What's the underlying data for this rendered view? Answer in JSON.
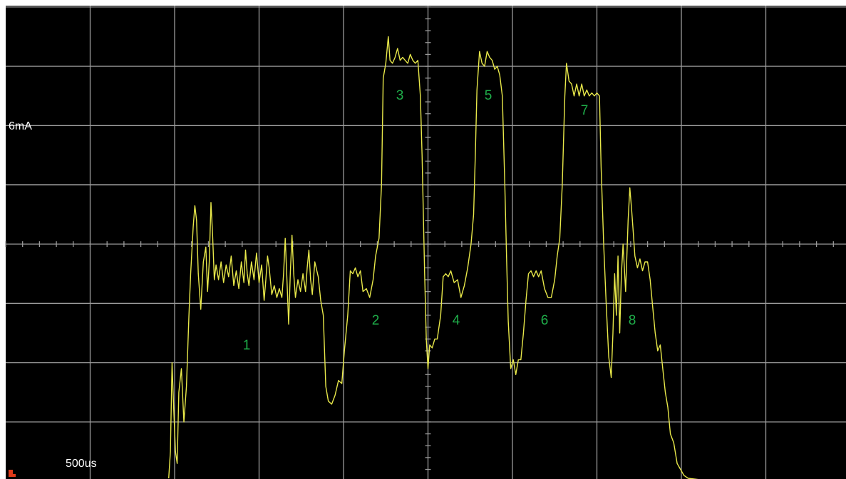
{
  "scope": {
    "vertical_scale_label": "6mA",
    "time_scale_label": "500us",
    "colors": {
      "background": "#000000",
      "grid": "#9a9a9a",
      "trace": "#e8e84a",
      "labels": "#1fae4a",
      "text": "#ffffff",
      "trigger_marker": "#e03a1a"
    }
  },
  "chart_data": {
    "type": "line",
    "grid": true,
    "xlim": [
      0,
      10
    ],
    "ylim": [
      -4,
      4
    ],
    "x_unit": "div",
    "y_unit": "div",
    "series": [
      {
        "points": [
          [
            1.93,
            -3.95
          ],
          [
            1.95,
            -3.5
          ],
          [
            1.97,
            -2.0
          ],
          [
            1.99,
            -2.8
          ],
          [
            2.01,
            -3.5
          ],
          [
            2.03,
            -3.7
          ],
          [
            2.05,
            -2.5
          ],
          [
            2.08,
            -2.1
          ],
          [
            2.11,
            -3.0
          ],
          [
            2.14,
            -2.4
          ],
          [
            2.17,
            -1.2
          ],
          [
            2.19,
            -0.5
          ],
          [
            2.22,
            0.3
          ],
          [
            2.24,
            0.65
          ],
          [
            2.26,
            0.4
          ],
          [
            2.28,
            -0.5
          ],
          [
            2.31,
            -1.1
          ],
          [
            2.34,
            -0.3
          ],
          [
            2.37,
            -0.05
          ],
          [
            2.39,
            -0.8
          ],
          [
            2.41,
            -0.3
          ],
          [
            2.43,
            0.7
          ],
          [
            2.45,
            0.15
          ],
          [
            2.47,
            -0.6
          ],
          [
            2.49,
            -0.35
          ],
          [
            2.52,
            -0.6
          ],
          [
            2.55,
            -0.3
          ],
          [
            2.58,
            -0.65
          ],
          [
            2.61,
            -0.35
          ],
          [
            2.64,
            -0.55
          ],
          [
            2.67,
            -0.2
          ],
          [
            2.7,
            -0.7
          ],
          [
            2.73,
            -0.45
          ],
          [
            2.76,
            -0.75
          ],
          [
            2.79,
            -0.3
          ],
          [
            2.82,
            -0.65
          ],
          [
            2.84,
            -0.1
          ],
          [
            2.86,
            -0.5
          ],
          [
            2.88,
            -0.7
          ],
          [
            2.91,
            -0.3
          ],
          [
            2.94,
            -0.6
          ],
          [
            2.97,
            -0.15
          ],
          [
            3.0,
            -0.65
          ],
          [
            3.03,
            -0.35
          ],
          [
            3.06,
            -0.95
          ],
          [
            3.08,
            -0.6
          ],
          [
            3.1,
            -0.2
          ],
          [
            3.12,
            -0.4
          ],
          [
            3.15,
            -0.85
          ],
          [
            3.18,
            -0.7
          ],
          [
            3.21,
            -0.9
          ],
          [
            3.24,
            -0.75
          ],
          [
            3.27,
            -0.9
          ],
          [
            3.29,
            -0.5
          ],
          [
            3.31,
            0.1
          ],
          [
            3.33,
            -0.6
          ],
          [
            3.35,
            -1.35
          ],
          [
            3.37,
            -0.5
          ],
          [
            3.39,
            0.15
          ],
          [
            3.41,
            -0.5
          ],
          [
            3.43,
            -0.9
          ],
          [
            3.46,
            -0.6
          ],
          [
            3.49,
            -0.8
          ],
          [
            3.52,
            -0.5
          ],
          [
            3.55,
            -0.8
          ],
          [
            3.57,
            -0.4
          ],
          [
            3.59,
            -0.1
          ],
          [
            3.61,
            -0.6
          ],
          [
            3.63,
            -0.85
          ],
          [
            3.66,
            -0.3
          ],
          [
            3.7,
            -0.55
          ],
          [
            3.73,
            -0.95
          ],
          [
            3.76,
            -1.2
          ],
          [
            3.79,
            -2.4
          ],
          [
            3.82,
            -2.65
          ],
          [
            3.86,
            -2.7
          ],
          [
            3.9,
            -2.55
          ],
          [
            3.94,
            -2.3
          ],
          [
            3.98,
            -2.35
          ],
          [
            4.01,
            -1.8
          ],
          [
            4.05,
            -1.2
          ],
          [
            4.08,
            -0.45
          ],
          [
            4.11,
            -0.5
          ],
          [
            4.14,
            -0.4
          ],
          [
            4.17,
            -0.55
          ],
          [
            4.2,
            -0.45
          ],
          [
            4.23,
            -0.8
          ],
          [
            4.27,
            -0.75
          ],
          [
            4.31,
            -0.9
          ],
          [
            4.35,
            -0.6
          ],
          [
            4.38,
            -0.2
          ],
          [
            4.42,
            0.1
          ],
          [
            4.45,
            1.0
          ],
          [
            4.47,
            2.8
          ],
          [
            4.5,
            3.05
          ],
          [
            4.53,
            3.5
          ],
          [
            4.55,
            3.1
          ],
          [
            4.58,
            3.05
          ],
          [
            4.61,
            3.15
          ],
          [
            4.64,
            3.3
          ],
          [
            4.67,
            3.1
          ],
          [
            4.7,
            3.15
          ],
          [
            4.73,
            3.1
          ],
          [
            4.76,
            3.05
          ],
          [
            4.79,
            3.2
          ],
          [
            4.82,
            3.1
          ],
          [
            4.85,
            3.05
          ],
          [
            4.88,
            3.1
          ],
          [
            4.91,
            2.5
          ],
          [
            4.93,
            1.5
          ],
          [
            4.96,
            -0.5
          ],
          [
            4.98,
            -1.6
          ],
          [
            5.0,
            -2.1
          ],
          [
            5.02,
            -1.7
          ],
          [
            5.05,
            -1.75
          ],
          [
            5.08,
            -1.6
          ],
          [
            5.11,
            -1.6
          ],
          [
            5.15,
            -1.2
          ],
          [
            5.18,
            -0.55
          ],
          [
            5.21,
            -0.5
          ],
          [
            5.24,
            -0.55
          ],
          [
            5.27,
            -0.45
          ],
          [
            5.31,
            -0.65
          ],
          [
            5.35,
            -0.6
          ],
          [
            5.39,
            -0.9
          ],
          [
            5.43,
            -0.7
          ],
          [
            5.47,
            -0.4
          ],
          [
            5.51,
            0.0
          ],
          [
            5.54,
            0.5
          ],
          [
            5.56,
            1.5
          ],
          [
            5.58,
            2.6
          ],
          [
            5.61,
            3.25
          ],
          [
            5.64,
            3.05
          ],
          [
            5.67,
            3.0
          ],
          [
            5.7,
            3.25
          ],
          [
            5.73,
            3.15
          ],
          [
            5.76,
            3.1
          ],
          [
            5.79,
            2.95
          ],
          [
            5.82,
            3.0
          ],
          [
            5.85,
            2.85
          ],
          [
            5.88,
            2.5
          ],
          [
            5.91,
            1.0
          ],
          [
            5.93,
            -0.2
          ],
          [
            5.95,
            -1.3
          ],
          [
            5.98,
            -2.1
          ],
          [
            6.01,
            -1.95
          ],
          [
            6.04,
            -2.2
          ],
          [
            6.07,
            -1.95
          ],
          [
            6.1,
            -1.95
          ],
          [
            6.13,
            -1.5
          ],
          [
            6.16,
            -0.95
          ],
          [
            6.19,
            -0.5
          ],
          [
            6.22,
            -0.45
          ],
          [
            6.25,
            -0.55
          ],
          [
            6.28,
            -0.45
          ],
          [
            6.31,
            -0.55
          ],
          [
            6.34,
            -0.45
          ],
          [
            6.38,
            -0.75
          ],
          [
            6.42,
            -0.9
          ],
          [
            6.46,
            -0.9
          ],
          [
            6.5,
            -0.6
          ],
          [
            6.53,
            -0.2
          ],
          [
            6.56,
            0.1
          ],
          [
            6.59,
            1.0
          ],
          [
            6.62,
            2.5
          ],
          [
            6.64,
            3.05
          ],
          [
            6.67,
            2.75
          ],
          [
            6.7,
            2.7
          ],
          [
            6.73,
            2.5
          ],
          [
            6.76,
            2.7
          ],
          [
            6.79,
            2.5
          ],
          [
            6.82,
            2.7
          ],
          [
            6.85,
            2.5
          ],
          [
            6.88,
            2.6
          ],
          [
            6.91,
            2.5
          ],
          [
            6.94,
            2.55
          ],
          [
            6.97,
            2.5
          ],
          [
            7.0,
            2.55
          ],
          [
            7.03,
            2.5
          ],
          [
            7.05,
            1.3
          ],
          [
            7.08,
            0.0
          ],
          [
            7.11,
            -1.0
          ],
          [
            7.14,
            -1.9
          ],
          [
            7.17,
            -2.25
          ],
          [
            7.19,
            -1.5
          ],
          [
            7.21,
            -0.5
          ],
          [
            7.23,
            -1.2
          ],
          [
            7.25,
            -0.2
          ],
          [
            7.27,
            -1.5
          ],
          [
            7.29,
            -0.5
          ],
          [
            7.31,
            0.0
          ],
          [
            7.34,
            -0.8
          ],
          [
            7.37,
            0.4
          ],
          [
            7.39,
            0.95
          ],
          [
            7.41,
            0.6
          ],
          [
            7.43,
            0.2
          ],
          [
            7.45,
            -0.2
          ],
          [
            7.48,
            -0.4
          ],
          [
            7.51,
            -0.25
          ],
          [
            7.54,
            -0.45
          ],
          [
            7.57,
            -0.3
          ],
          [
            7.6,
            -0.3
          ],
          [
            7.63,
            -0.6
          ],
          [
            7.66,
            -1.05
          ],
          [
            7.69,
            -1.5
          ],
          [
            7.72,
            -1.8
          ],
          [
            7.75,
            -1.7
          ],
          [
            7.78,
            -2.1
          ],
          [
            7.81,
            -2.5
          ],
          [
            7.84,
            -2.75
          ],
          [
            7.87,
            -3.2
          ],
          [
            7.91,
            -3.35
          ],
          [
            7.95,
            -3.7
          ],
          [
            7.99,
            -3.8
          ],
          [
            8.03,
            -3.9
          ],
          [
            8.08,
            -3.95
          ],
          [
            8.2,
            -3.97
          ]
        ]
      }
    ],
    "annotations": [
      "1",
      "2",
      "3",
      "4",
      "5",
      "6",
      "7",
      "8"
    ]
  }
}
